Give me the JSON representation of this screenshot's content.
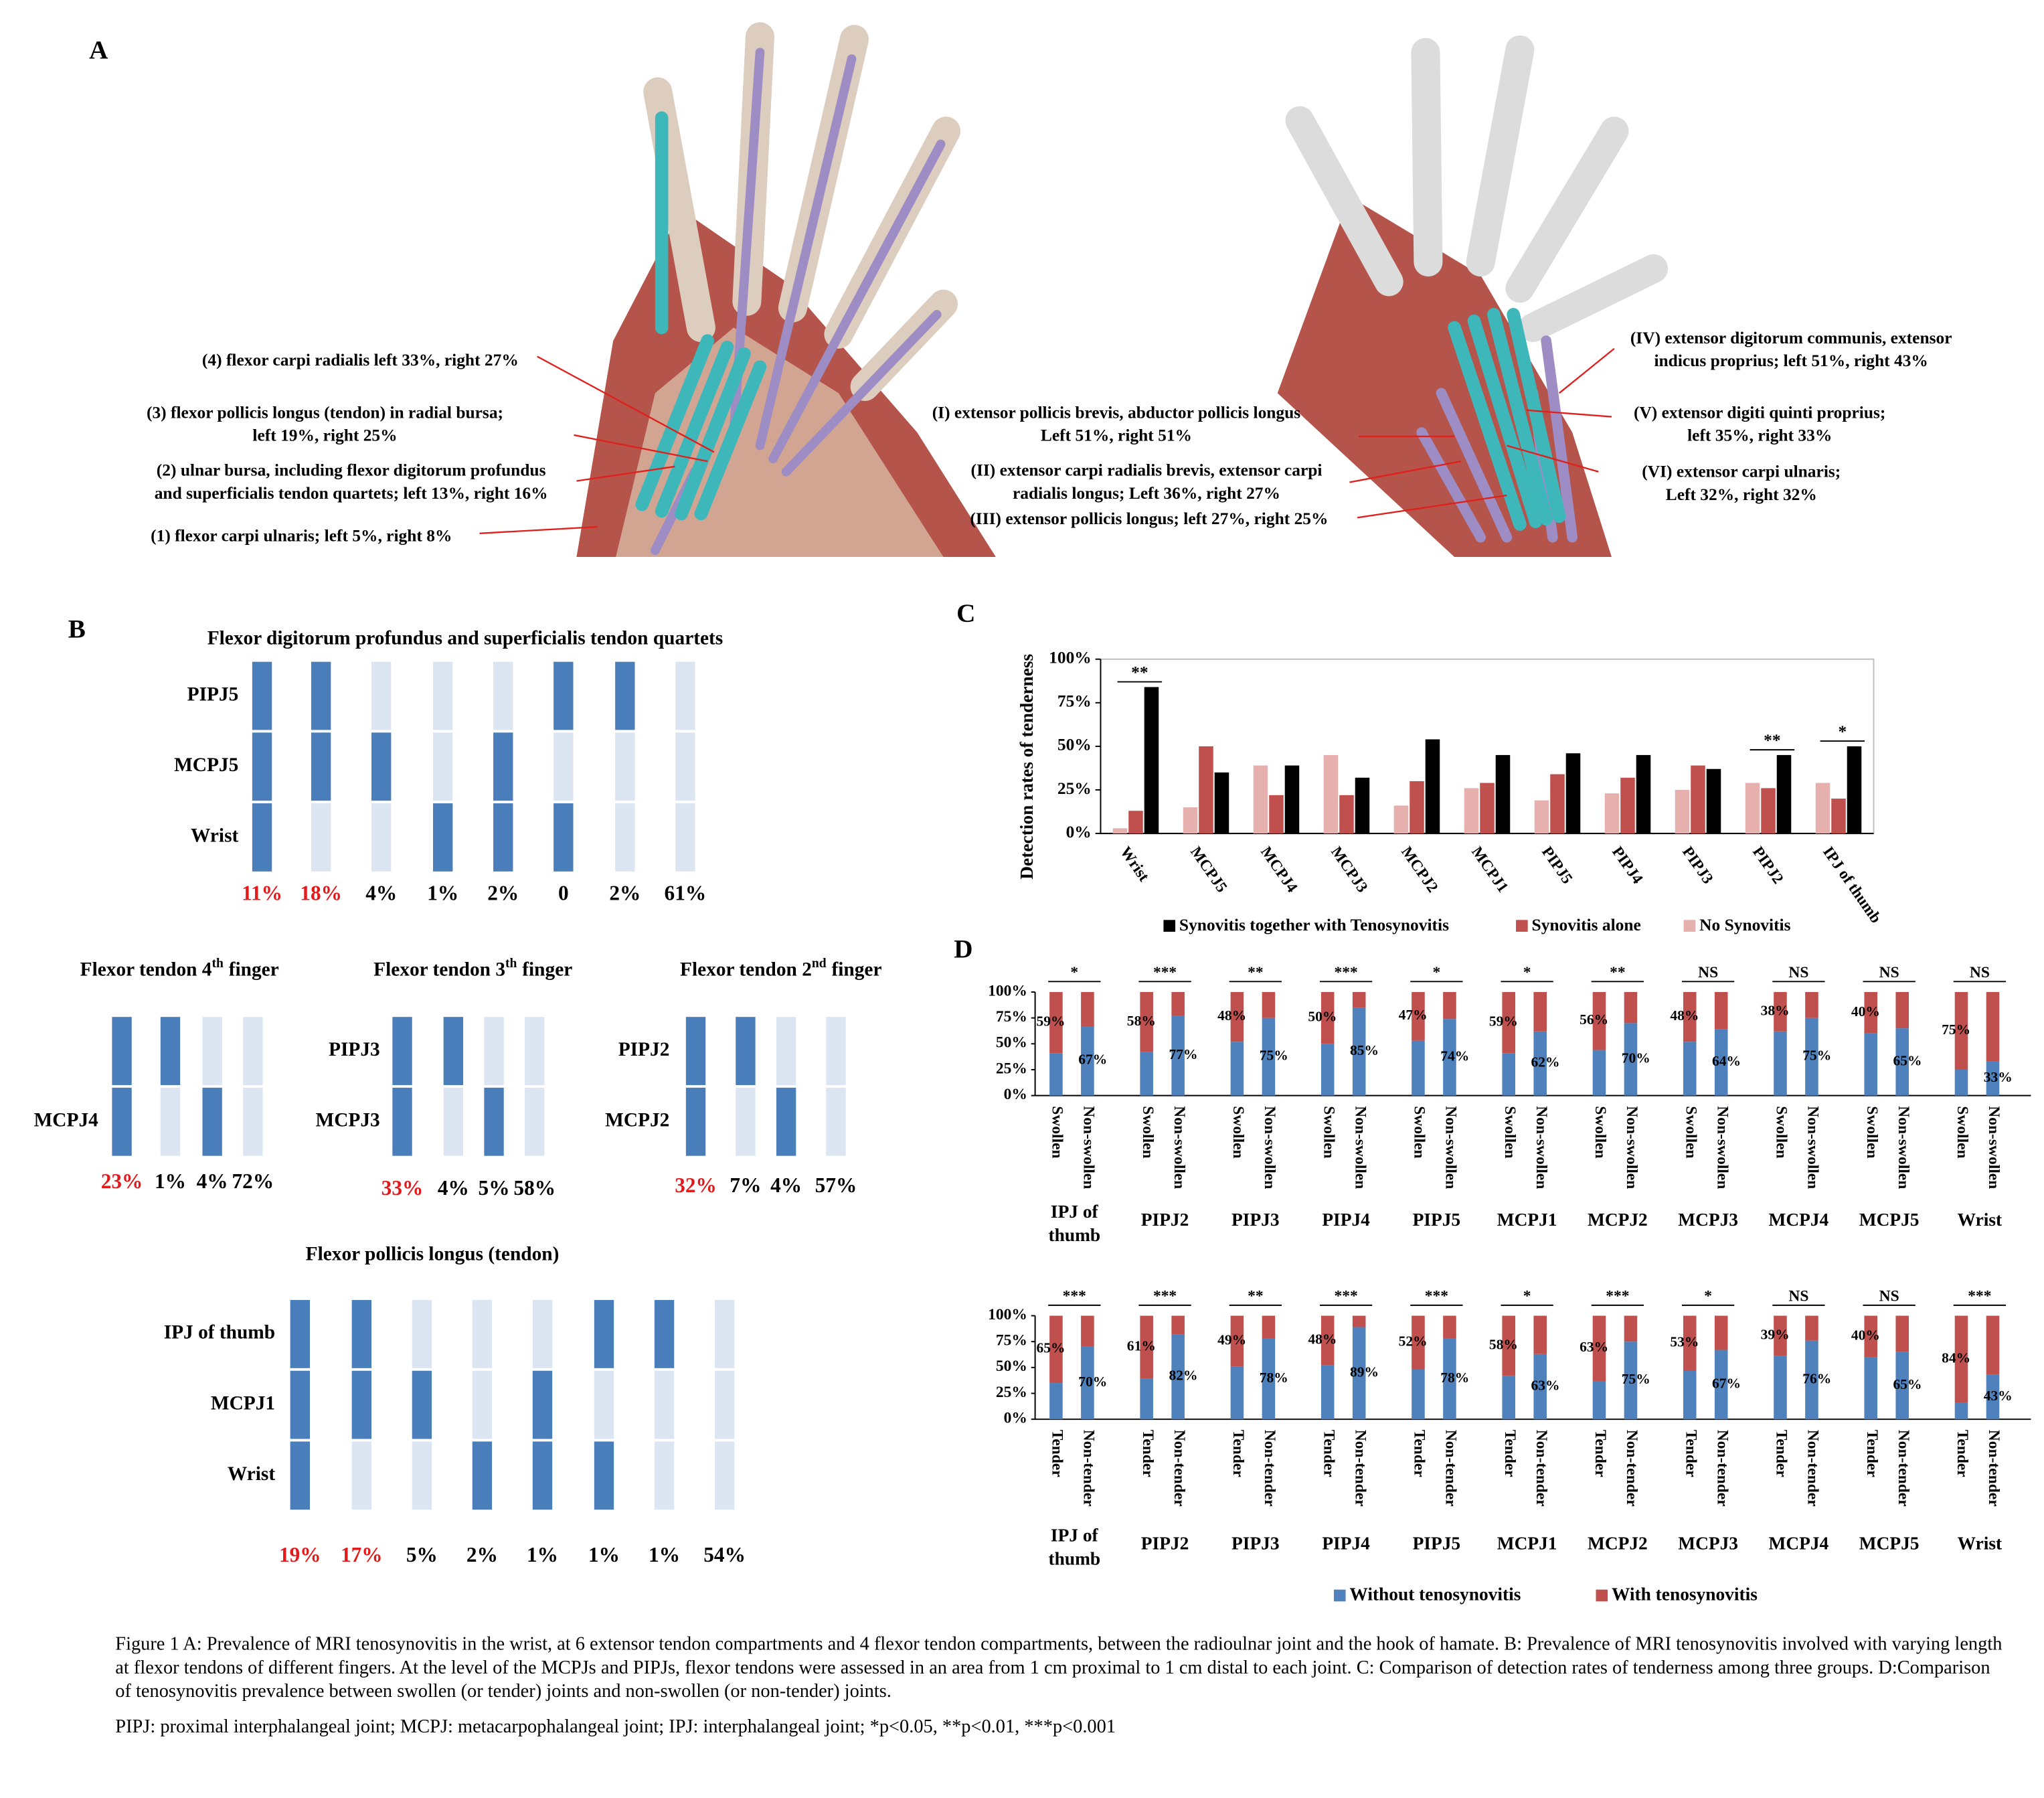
{
  "panel_a": {
    "label": "A",
    "flexor_labels": [
      {
        "lines": [
          "(4) flexor carpi radialis left 33%, right 27%"
        ]
      },
      {
        "lines": [
          "(3) flexor pollicis longus (tendon) in radial bursa;",
          "left 19%, right 25%"
        ]
      },
      {
        "lines": [
          "(2) ulnar bursa, including flexor digitorum profundus",
          "and superficialis tendon quartets; left 13%, right 16%"
        ]
      },
      {
        "lines": [
          "(1) flexor carpi ulnaris; left 5%, right 8%"
        ]
      }
    ],
    "extensor_labels": [
      {
        "lines": [
          "(I) extensor pollicis brevis, abductor pollicis longus",
          "Left 51%, right 51%"
        ]
      },
      {
        "lines": [
          "(II) extensor carpi radialis brevis, extensor carpi",
          "radialis longus; Left 36%, right 27%"
        ]
      },
      {
        "lines": [
          "(III) extensor pollicis longus; left 27%, right 25%"
        ]
      },
      {
        "lines": [
          "(IV) extensor digitorum communis, extensor",
          "indicus proprius; left 51%, right 43%"
        ]
      },
      {
        "lines": [
          "(V) extensor digiti quinti proprius;",
          "left 35%, right 33%"
        ]
      },
      {
        "lines": [
          "(VI) extensor carpi ulnaris;",
          "Left 32%, right 32%"
        ]
      }
    ]
  },
  "panel_b": {
    "label": "B",
    "involved_color": "#4a7ebb",
    "uninvolved_color": "#dce6f2",
    "diagrams": [
      {
        "title": [
          "Flexor digitorum profundus and superficialis tendon quartets"
        ],
        "rows": [
          "PIPJ5",
          "MCPJ5",
          "Wrist"
        ],
        "columns": [
          {
            "involved": [
              true,
              true,
              true
            ],
            "label": "11%",
            "color": "#e31a1c"
          },
          {
            "involved": [
              true,
              true,
              false
            ],
            "label": "18%",
            "color": "#e31a1c"
          },
          {
            "involved": [
              false,
              true,
              false
            ],
            "label": "4%",
            "color": "#000000"
          },
          {
            "involved": [
              false,
              false,
              true
            ],
            "label": "1%",
            "color": "#000000"
          },
          {
            "involved": [
              false,
              true,
              true
            ],
            "label": "2%",
            "color": "#000000"
          },
          {
            "involved": [
              true,
              false,
              true
            ],
            "label": "0",
            "color": "#000000"
          },
          {
            "involved": [
              true,
              false,
              false
            ],
            "label": "2%",
            "color": "#000000"
          },
          {
            "involved": [
              false,
              false,
              false
            ],
            "label": "61%",
            "color": "#000000"
          }
        ]
      },
      {
        "title": [
          "Flexor tendon 4",
          "th",
          "finger"
        ],
        "rows": [
          null,
          "MCPJ4"
        ],
        "columns": [
          {
            "involved": [
              true,
              true
            ],
            "label": "23%",
            "color": "#e31a1c"
          },
          {
            "involved": [
              true,
              false
            ],
            "label": "1%",
            "color": "#000000"
          },
          {
            "involved": [
              false,
              true
            ],
            "label": "4%",
            "color": "#000000"
          },
          {
            "involved": [
              false,
              false
            ],
            "label": "72%",
            "color": "#000000"
          }
        ]
      },
      {
        "title": [
          "Flexor tendon 3",
          "th",
          "finger"
        ],
        "rows": [
          "PIPJ3",
          "MCPJ3"
        ],
        "columns": [
          {
            "involved": [
              true,
              true
            ],
            "label": "33%",
            "color": "#e31a1c"
          },
          {
            "involved": [
              true,
              false
            ],
            "label": "4%",
            "color": "#000000"
          },
          {
            "involved": [
              false,
              true
            ],
            "label": "5%",
            "color": "#000000"
          },
          {
            "involved": [
              false,
              false
            ],
            "label": "58%",
            "color": "#000000"
          }
        ]
      },
      {
        "title": [
          "Flexor tendon 2",
          "nd",
          "finger"
        ],
        "rows": [
          "PIPJ2",
          "MCPJ2"
        ],
        "columns": [
          {
            "involved": [
              true,
              true
            ],
            "label": "32%",
            "color": "#e31a1c"
          },
          {
            "involved": [
              true,
              false
            ],
            "label": "7%",
            "color": "#000000"
          },
          {
            "involved": [
              false,
              true
            ],
            "label": "4%",
            "color": "#000000"
          },
          {
            "involved": [
              false,
              false
            ],
            "label": "57%",
            "color": "#000000"
          }
        ]
      },
      {
        "title": [
          "Flexor pollicis longus (tendon)"
        ],
        "rows": [
          "IPJ of thumb",
          "MCPJ1",
          "Wrist"
        ],
        "columns": [
          {
            "involved": [
              true,
              true,
              true
            ],
            "label": "19%",
            "color": "#e31a1c"
          },
          {
            "involved": [
              true,
              true,
              false
            ],
            "label": "17%",
            "color": "#e31a1c"
          },
          {
            "involved": [
              false,
              true,
              false
            ],
            "label": "5%",
            "color": "#000000"
          },
          {
            "involved": [
              false,
              false,
              true
            ],
            "label": "2%",
            "color": "#000000"
          },
          {
            "involved": [
              false,
              true,
              true
            ],
            "label": "1%",
            "color": "#000000"
          },
          {
            "involved": [
              true,
              false,
              true
            ],
            "label": "1%",
            "color": "#000000"
          },
          {
            "involved": [
              true,
              false,
              false
            ],
            "label": "1%",
            "color": "#000000"
          },
          {
            "involved": [
              false,
              false,
              false
            ],
            "label": "54%",
            "color": "#000000"
          }
        ]
      }
    ]
  },
  "chart_data": [
    {
      "type": "bar",
      "panel_label": "C",
      "ylabel": "Detection rates of tenderness",
      "categories": [
        "Wrist",
        "MCPJ5",
        "MCPJ4",
        "MCPJ3",
        "MCPJ2",
        "MCPJ1",
        "PIPJ5",
        "PIPJ4",
        "PIPJ3",
        "PIPJ2",
        "IPJ of thumb"
      ],
      "series": [
        {
          "name": "Synovitis together with Tenosynovitis",
          "color": "#000000",
          "values": [
            84,
            35,
            39,
            32,
            54,
            45,
            46,
            45,
            37,
            45,
            50
          ]
        },
        {
          "name": "Synovitis alone",
          "color": "#c0504d",
          "values": [
            13,
            50,
            22,
            22,
            30,
            29,
            34,
            32,
            39,
            26,
            20
          ]
        },
        {
          "name": "No Synovitis",
          "color": "#e6b0ae",
          "values": [
            3,
            15,
            39,
            45,
            16,
            26,
            19,
            23,
            25,
            29,
            29
          ]
        }
      ],
      "ylim": [
        0,
        100
      ],
      "yticks": [
        {
          "value": 0,
          "label": "0%"
        },
        {
          "value": 25,
          "label": "25%"
        },
        {
          "value": 50,
          "label": "50%"
        },
        {
          "value": 75,
          "label": "75%"
        },
        {
          "value": 100,
          "label": "100%"
        }
      ],
      "annotations": [
        {
          "category": "Wrist",
          "label": "**"
        },
        {
          "category": "PIPJ2",
          "label": "**"
        },
        {
          "category": "IPJ of thumb",
          "label": "*"
        }
      ]
    },
    {
      "type": "stacked_bar",
      "panel_label": "D",
      "groups": [
        "IPJ of thumb",
        "PIPJ2",
        "PIPJ3",
        "PIPJ4",
        "PIPJ5",
        "MCPJ1",
        "MCPJ2",
        "MCPJ3",
        "MCPJ4",
        "MCPJ5",
        "Wrist"
      ],
      "series": [
        {
          "name": "Without tenosynovitis",
          "color": "#4f81bd"
        },
        {
          "name": "With tenosynovitis",
          "color": "#c0504d"
        }
      ],
      "ylim": [
        0,
        100
      ],
      "yticks": [
        {
          "value": 0,
          "label": "0%"
        },
        {
          "value": 25,
          "label": "25%"
        },
        {
          "value": 50,
          "label": "50%"
        },
        {
          "value": 75,
          "label": "75%"
        },
        {
          "value": 100,
          "label": "100%"
        }
      ],
      "panels": [
        {
          "bar_labels": [
            "Swollen",
            "Non-swollen"
          ],
          "significance": [
            "*",
            "***",
            "**",
            "***",
            "*",
            "*",
            "**",
            "NS",
            "NS",
            "NS",
            "NS"
          ],
          "series": [
            {
              "values": [
                41,
                67,
                42,
                77,
                52,
                75,
                50,
                85,
                53,
                74,
                41,
                62,
                44,
                70,
                52,
                64,
                62,
                75,
                60,
                65,
                25,
                33
              ],
              "value_labels": [
                null,
                "67%",
                null,
                "77%",
                null,
                "75%",
                null,
                "85%",
                null,
                "74%",
                null,
                "62%",
                null,
                "70%",
                null,
                "64%",
                null,
                "75%",
                null,
                "65%",
                null,
                "33%"
              ]
            },
            {
              "values": [
                59,
                33,
                58,
                23,
                48,
                25,
                50,
                15,
                47,
                26,
                59,
                38,
                56,
                30,
                48,
                36,
                38,
                25,
                40,
                35,
                75,
                67
              ],
              "value_labels": [
                "59%",
                null,
                "58%",
                null,
                "48%",
                null,
                "50%",
                null,
                "47%",
                null,
                "59%",
                null,
                "56%",
                null,
                "48%",
                null,
                "38%",
                null,
                "40%",
                null,
                "75%",
                null
              ]
            }
          ]
        },
        {
          "bar_labels": [
            "Tender",
            "Non-tender"
          ],
          "significance": [
            "***",
            "***",
            "**",
            "***",
            "***",
            "*",
            "***",
            "*",
            "NS",
            "NS",
            "***"
          ],
          "series": [
            {
              "values": [
                35,
                70,
                39,
                82,
                51,
                78,
                52,
                89,
                48,
                78,
                42,
                63,
                37,
                75,
                47,
                67,
                61,
                76,
                60,
                65,
                16,
                43
              ],
              "value_labels": [
                null,
                "70%",
                null,
                "82%",
                null,
                "78%",
                null,
                "89%",
                null,
                "78%",
                null,
                "63%",
                null,
                "75%",
                null,
                "67%",
                null,
                "76%",
                null,
                "65%",
                null,
                "43%"
              ]
            },
            {
              "values": [
                65,
                30,
                61,
                18,
                49,
                22,
                48,
                11,
                52,
                22,
                58,
                37,
                63,
                25,
                53,
                33,
                39,
                24,
                40,
                35,
                84,
                57
              ],
              "value_labels": [
                "65%",
                null,
                "61%",
                null,
                "49%",
                null,
                "48%",
                null,
                "52%",
                null,
                "58%",
                null,
                "63%",
                null,
                "53%",
                null,
                "39%",
                null,
                "40%",
                null,
                "84%",
                null
              ]
            }
          ]
        }
      ]
    }
  ],
  "caption": {
    "text": "Figure 1  A: Prevalence of MRI tenosynovitis in the wrist, at 6 extensor tendon compartments and 4 flexor tendon compartments, between the radioulnar joint and the hook of hamate. B: Prevalence of MRI tenosynovitis involved with varying length at flexor tendons of different fingers. At the level of the MCPJs and PIPJs, flexor tendons were assessed in an area from 1 cm proximal to 1 cm distal to each joint. C: Comparison of detection rates of tenderness among three groups. D:Comparison of tenosynovitis prevalence between swollen (or tender) joints and non-swollen (or non-tender) joints.",
    "note": "PIPJ: proximal interphalangeal joint; MCPJ: metacarpophalangeal joint; IPJ: interphalangeal joint; *p<0.05, **p<0.01, ***p<0.001"
  }
}
